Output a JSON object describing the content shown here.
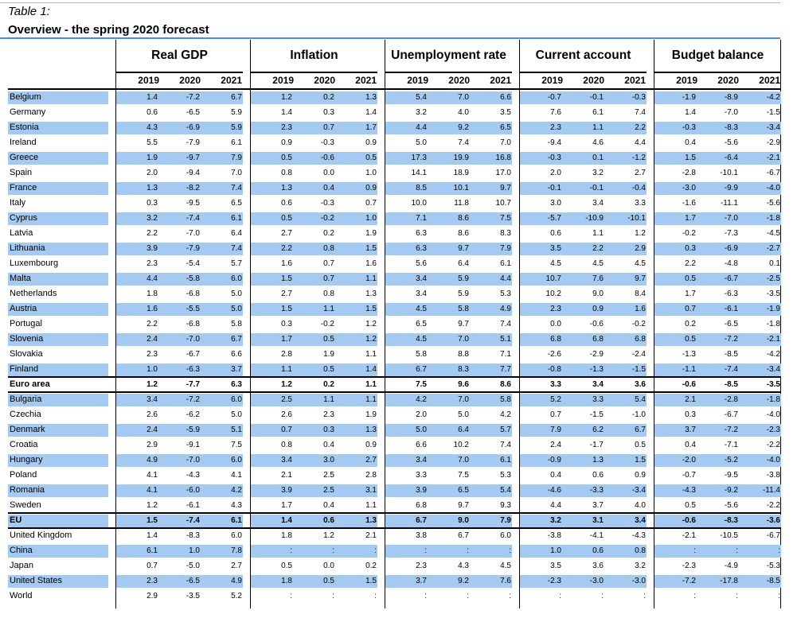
{
  "caption": "Table 1:",
  "title": "Overview - the spring 2020 forecast",
  "groups": [
    "Real GDP",
    "Inflation",
    "Unemployment rate",
    "Current account",
    "Budget balance"
  ],
  "years": [
    "2019",
    "2020",
    "2021"
  ],
  "colors": {
    "highlight": "#a4caf1",
    "rule": "#000000",
    "title_rule": "#4a8fd6"
  },
  "rows": [
    {
      "label": "Belgium",
      "shaded": true,
      "values": [
        "1.4",
        "-7.2",
        "6.7",
        "1.2",
        "0.2",
        "1.3",
        "5.4",
        "7.0",
        "6.6",
        "-0.7",
        "-0.1",
        "-0.3",
        "-1.9",
        "-8.9",
        "-4.2"
      ]
    },
    {
      "label": "Germany",
      "shaded": false,
      "values": [
        "0.6",
        "-6.5",
        "5.9",
        "1.4",
        "0.3",
        "1.4",
        "3.2",
        "4.0",
        "3.5",
        "7.6",
        "6.1",
        "7.4",
        "1.4",
        "-7.0",
        "-1.5"
      ]
    },
    {
      "label": "Estonia",
      "shaded": true,
      "values": [
        "4.3",
        "-6.9",
        "5.9",
        "2.3",
        "0.7",
        "1.7",
        "4.4",
        "9.2",
        "6.5",
        "2.3",
        "1.1",
        "2.2",
        "-0.3",
        "-8.3",
        "-3.4"
      ]
    },
    {
      "label": "Ireland",
      "shaded": false,
      "values": [
        "5.5",
        "-7.9",
        "6.1",
        "0.9",
        "-0.3",
        "0.9",
        "5.0",
        "7.4",
        "7.0",
        "-9.4",
        "4.6",
        "4.4",
        "0.4",
        "-5.6",
        "-2.9"
      ]
    },
    {
      "label": "Greece",
      "shaded": true,
      "values": [
        "1.9",
        "-9.7",
        "7.9",
        "0.5",
        "-0.6",
        "0.5",
        "17.3",
        "19.9",
        "16.8",
        "-0.3",
        "0.1",
        "-1.2",
        "1.5",
        "-6.4",
        "-2.1"
      ]
    },
    {
      "label": "Spain",
      "shaded": false,
      "values": [
        "2.0",
        "-9.4",
        "7.0",
        "0.8",
        "0.0",
        "1.0",
        "14.1",
        "18.9",
        "17.0",
        "2.0",
        "3.2",
        "2.7",
        "-2.8",
        "-10.1",
        "-6.7"
      ]
    },
    {
      "label": "France",
      "shaded": true,
      "values": [
        "1.3",
        "-8.2",
        "7.4",
        "1.3",
        "0.4",
        "0.9",
        "8.5",
        "10.1",
        "9.7",
        "-0.1",
        "-0.1",
        "-0.4",
        "-3.0",
        "-9.9",
        "-4.0"
      ]
    },
    {
      "label": "Italy",
      "shaded": false,
      "values": [
        "0.3",
        "-9.5",
        "6.5",
        "0.6",
        "-0.3",
        "0.7",
        "10.0",
        "11.8",
        "10.7",
        "3.0",
        "3.4",
        "3.3",
        "-1.6",
        "-11.1",
        "-5.6"
      ]
    },
    {
      "label": "Cyprus",
      "shaded": true,
      "values": [
        "3.2",
        "-7.4",
        "6.1",
        "0.5",
        "-0.2",
        "1.0",
        "7.1",
        "8.6",
        "7.5",
        "-5.7",
        "-10.9",
        "-10.1",
        "1.7",
        "-7.0",
        "-1.8"
      ]
    },
    {
      "label": "Latvia",
      "shaded": false,
      "values": [
        "2.2",
        "-7.0",
        "6.4",
        "2.7",
        "0.2",
        "1.9",
        "6.3",
        "8.6",
        "8.3",
        "0.6",
        "1.1",
        "1.2",
        "-0.2",
        "-7.3",
        "-4.5"
      ]
    },
    {
      "label": "Lithuania",
      "shaded": true,
      "values": [
        "3.9",
        "-7.9",
        "7.4",
        "2.2",
        "0.8",
        "1.5",
        "6.3",
        "9.7",
        "7.9",
        "3.5",
        "2.2",
        "2.9",
        "0.3",
        "-6.9",
        "-2.7"
      ]
    },
    {
      "label": "Luxembourg",
      "shaded": false,
      "values": [
        "2.3",
        "-5.4",
        "5.7",
        "1.6",
        "0.7",
        "1.6",
        "5.6",
        "6.4",
        "6.1",
        "4.5",
        "4.5",
        "4.5",
        "2.2",
        "-4.8",
        "0.1"
      ]
    },
    {
      "label": "Malta",
      "shaded": true,
      "values": [
        "4.4",
        "-5.8",
        "6.0",
        "1.5",
        "0.7",
        "1.1",
        "3.4",
        "5.9",
        "4.4",
        "10.7",
        "7.6",
        "9.7",
        "0.5",
        "-6.7",
        "-2.5"
      ]
    },
    {
      "label": "Netherlands",
      "shaded": false,
      "values": [
        "1.8",
        "-6.8",
        "5.0",
        "2.7",
        "0.8",
        "1.3",
        "3.4",
        "5.9",
        "5.3",
        "10.2",
        "9.0",
        "8.4",
        "1.7",
        "-6.3",
        "-3.5"
      ]
    },
    {
      "label": "Austria",
      "shaded": true,
      "values": [
        "1.6",
        "-5.5",
        "5.0",
        "1.5",
        "1.1",
        "1.5",
        "4.5",
        "5.8",
        "4.9",
        "2.3",
        "0.9",
        "1.6",
        "0.7",
        "-6.1",
        "-1.9"
      ]
    },
    {
      "label": "Portugal",
      "shaded": false,
      "values": [
        "2.2",
        "-6.8",
        "5.8",
        "0.3",
        "-0.2",
        "1.2",
        "6.5",
        "9.7",
        "7.4",
        "0.0",
        "-0.6",
        "-0.2",
        "0.2",
        "-6.5",
        "-1.8"
      ]
    },
    {
      "label": "Slovenia",
      "shaded": true,
      "values": [
        "2.4",
        "-7.0",
        "6.7",
        "1.7",
        "0.5",
        "1.2",
        "4.5",
        "7.0",
        "5.1",
        "6.8",
        "6.8",
        "6.8",
        "0.5",
        "-7.2",
        "-2.1"
      ]
    },
    {
      "label": "Slovakia",
      "shaded": false,
      "values": [
        "2.3",
        "-6.7",
        "6.6",
        "2.8",
        "1.9",
        "1.1",
        "5.8",
        "8.8",
        "7.1",
        "-2.6",
        "-2.9",
        "-2.4",
        "-1.3",
        "-8.5",
        "-4.2"
      ]
    },
    {
      "label": "Finland",
      "shaded": true,
      "values": [
        "1.0",
        "-6.3",
        "3.7",
        "1.1",
        "0.5",
        "1.4",
        "6.7",
        "8.3",
        "7.7",
        "-0.8",
        "-1.3",
        "-1.5",
        "-1.1",
        "-7.4",
        "-3.4"
      ]
    },
    {
      "label": "Euro area",
      "shaded": false,
      "bold": true,
      "values": [
        "1.2",
        "-7.7",
        "6.3",
        "1.2",
        "0.2",
        "1.1",
        "7.5",
        "9.6",
        "8.6",
        "3.3",
        "3.4",
        "3.6",
        "-0.6",
        "-8.5",
        "-3.5"
      ]
    },
    {
      "label": "Bulgaria",
      "shaded": true,
      "values": [
        "3.4",
        "-7.2",
        "6.0",
        "2.5",
        "1.1",
        "1.1",
        "4.2",
        "7.0",
        "5.8",
        "5.2",
        "3.3",
        "5.4",
        "2.1",
        "-2.8",
        "-1.8"
      ]
    },
    {
      "label": "Czechia",
      "shaded": false,
      "values": [
        "2.6",
        "-6.2",
        "5.0",
        "2.6",
        "2.3",
        "1.9",
        "2.0",
        "5.0",
        "4.2",
        "0.7",
        "-1.5",
        "-1.0",
        "0.3",
        "-6.7",
        "-4.0"
      ]
    },
    {
      "label": "Denmark",
      "shaded": true,
      "values": [
        "2.4",
        "-5.9",
        "5.1",
        "0.7",
        "0.3",
        "1.3",
        "5.0",
        "6.4",
        "5.7",
        "7.9",
        "6.2",
        "6.7",
        "3.7",
        "-7.2",
        "-2.3"
      ]
    },
    {
      "label": "Croatia",
      "shaded": false,
      "values": [
        "2.9",
        "-9.1",
        "7.5",
        "0.8",
        "0.4",
        "0.9",
        "6.6",
        "10.2",
        "7.4",
        "2.4",
        "-1.7",
        "0.5",
        "0.4",
        "-7.1",
        "-2.2"
      ]
    },
    {
      "label": "Hungary",
      "shaded": true,
      "values": [
        "4.9",
        "-7.0",
        "6.0",
        "3.4",
        "3.0",
        "2.7",
        "3.4",
        "7.0",
        "6.1",
        "-0.9",
        "1.3",
        "1.5",
        "-2.0",
        "-5.2",
        "-4.0"
      ]
    },
    {
      "label": "Poland",
      "shaded": false,
      "values": [
        "4.1",
        "-4.3",
        "4.1",
        "2.1",
        "2.5",
        "2.8",
        "3.3",
        "7.5",
        "5.3",
        "0.4",
        "0.6",
        "0.9",
        "-0.7",
        "-9.5",
        "-3.8"
      ]
    },
    {
      "label": "Romania",
      "shaded": true,
      "values": [
        "4.1",
        "-6.0",
        "4.2",
        "3.9",
        "2.5",
        "3.1",
        "3.9",
        "6.5",
        "5.4",
        "-4.6",
        "-3.3",
        "-3.4",
        "-4.3",
        "-9.2",
        "-11.4"
      ]
    },
    {
      "label": "Sweden",
      "shaded": false,
      "values": [
        "1.2",
        "-6.1",
        "4.3",
        "1.7",
        "0.4",
        "1.1",
        "6.8",
        "9.7",
        "9.3",
        "4.4",
        "3.7",
        "4.0",
        "0.5",
        "-5.6",
        "-2.2"
      ]
    },
    {
      "label": "EU",
      "shaded": true,
      "bold": true,
      "values": [
        "1.5",
        "-7.4",
        "6.1",
        "1.4",
        "0.6",
        "1.3",
        "6.7",
        "9.0",
        "7.9",
        "3.2",
        "3.1",
        "3.4",
        "-0.6",
        "-8.3",
        "-3.6"
      ]
    },
    {
      "label": "United Kingdom",
      "shaded": false,
      "values": [
        "1.4",
        "-8.3",
        "6.0",
        "1.8",
        "1.2",
        "2.1",
        "3.8",
        "6.7",
        "6.0",
        "-3.8",
        "-4.1",
        "-4.3",
        "-2.1",
        "-10.5",
        "-6.7"
      ]
    },
    {
      "label": "China",
      "shaded": true,
      "values": [
        "6.1",
        "1.0",
        "7.8",
        ":",
        ":",
        ":",
        ":",
        ":",
        ":",
        "1.0",
        "0.6",
        "0.8",
        ":",
        ":",
        ":"
      ]
    },
    {
      "label": "Japan",
      "shaded": false,
      "values": [
        "0.7",
        "-5.0",
        "2.7",
        "0.5",
        "0.0",
        "0.2",
        "2.3",
        "4.3",
        "4.5",
        "3.5",
        "3.6",
        "3.2",
        "-2.3",
        "-4.9",
        "-5.3"
      ]
    },
    {
      "label": "United States",
      "shaded": true,
      "values": [
        "2.3",
        "-6.5",
        "4.9",
        "1.8",
        "0.5",
        "1.5",
        "3.7",
        "9.2",
        "7.6",
        "-2.3",
        "-3.0",
        "-3.0",
        "-7.2",
        "-17.8",
        "-8.5"
      ]
    },
    {
      "label": "World",
      "shaded": false,
      "values": [
        "2.9",
        "-3.5",
        "5.2",
        ":",
        ":",
        ":",
        ":",
        ":",
        ":",
        ":",
        ":",
        ":",
        ":",
        ":",
        ":"
      ]
    }
  ]
}
